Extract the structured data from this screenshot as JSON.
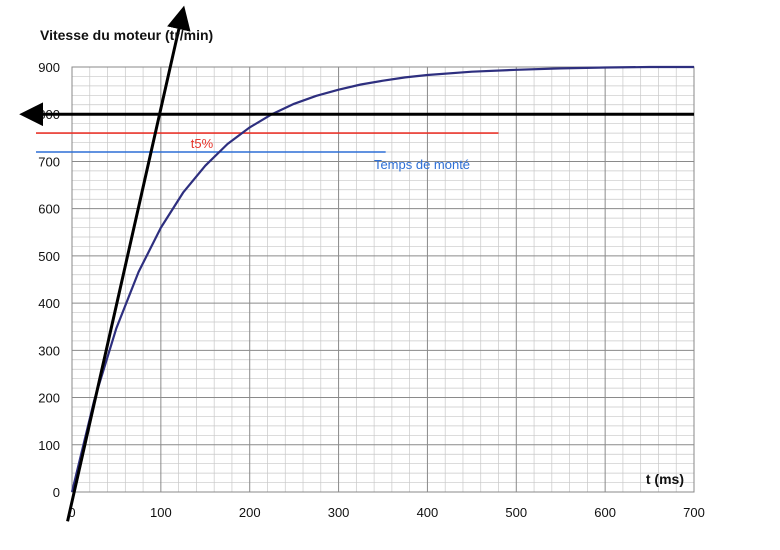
{
  "chart_data": {
    "type": "line",
    "title": "",
    "ylabel": "Vitesse du moteur (tr/min)",
    "xlabel": "t (ms)",
    "xlim": [
      0,
      700
    ],
    "ylim": [
      0,
      900
    ],
    "x_ticks": [
      0,
      100,
      200,
      300,
      400,
      500,
      600,
      700
    ],
    "y_ticks": [
      0,
      100,
      200,
      300,
      400,
      500,
      600,
      700,
      800,
      900
    ],
    "grid": true,
    "series": [
      {
        "color": "#2e2f7f",
        "x": [
          0,
          25,
          50,
          75,
          100,
          125,
          150,
          175,
          200,
          225,
          250,
          275,
          300,
          325,
          350,
          375,
          400,
          450,
          500,
          550,
          600,
          650,
          700
        ],
        "y": [
          0,
          194,
          347,
          466,
          560,
          634,
          691,
          737,
          772,
          800,
          822,
          839,
          852,
          863,
          871,
          878,
          883,
          890,
          894,
          897,
          899,
          900,
          900
        ]
      }
    ],
    "annotations": [
      {
        "text": "t5%",
        "color": "#e8352b",
        "y": 760,
        "x_end": 480
      },
      {
        "text": "Temps de monté",
        "color": "#2d6fd6",
        "y": 720,
        "x_end": 353
      }
    ],
    "overlays": {
      "asymptote": {
        "y": 800,
        "color": "#000000"
      },
      "tangent": {
        "x": [
          -5,
          125
        ],
        "y": [
          -62,
          1020
        ],
        "color": "#000000"
      }
    }
  }
}
